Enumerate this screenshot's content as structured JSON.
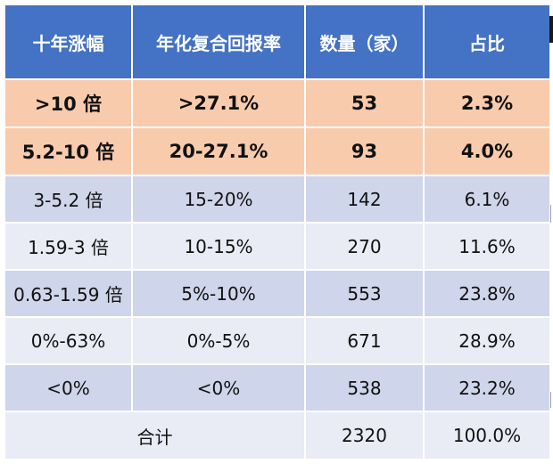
{
  "header": {
    "col1": "十年涨幅",
    "col2": "年化复合回报率",
    "col3": "数量（家）",
    "col4": "占比"
  },
  "rows": [
    {
      "range": ">10 倍",
      "cagr": ">27.1%",
      "count": "53",
      "share": "2.3%"
    },
    {
      "range": "5.2-10 倍",
      "cagr": "20-27.1%",
      "count": "93",
      "share": "4.0%"
    },
    {
      "range": "3-5.2 倍",
      "cagr": "15-20%",
      "count": "142",
      "share": "6.1%"
    },
    {
      "range": "1.59-3 倍",
      "cagr": "10-15%",
      "count": "270",
      "share": "11.6%"
    },
    {
      "range": "0.63-1.59 倍",
      "cagr": "5%-10%",
      "count": "553",
      "share": "23.8%"
    },
    {
      "range": "0%-63%",
      "cagr": "0%-5%",
      "count": "671",
      "share": "28.9%"
    },
    {
      "range": "<0%",
      "cagr": "<0%",
      "count": "538",
      "share": "23.2%"
    }
  ],
  "total": {
    "label": "合计",
    "count": "2320",
    "share": "100.0%"
  },
  "colors": {
    "header_bg": "#4472c4",
    "highlight_bg": "#f8cbad",
    "band_dark": "#cfd5ea",
    "band_light": "#e9ebf5"
  }
}
